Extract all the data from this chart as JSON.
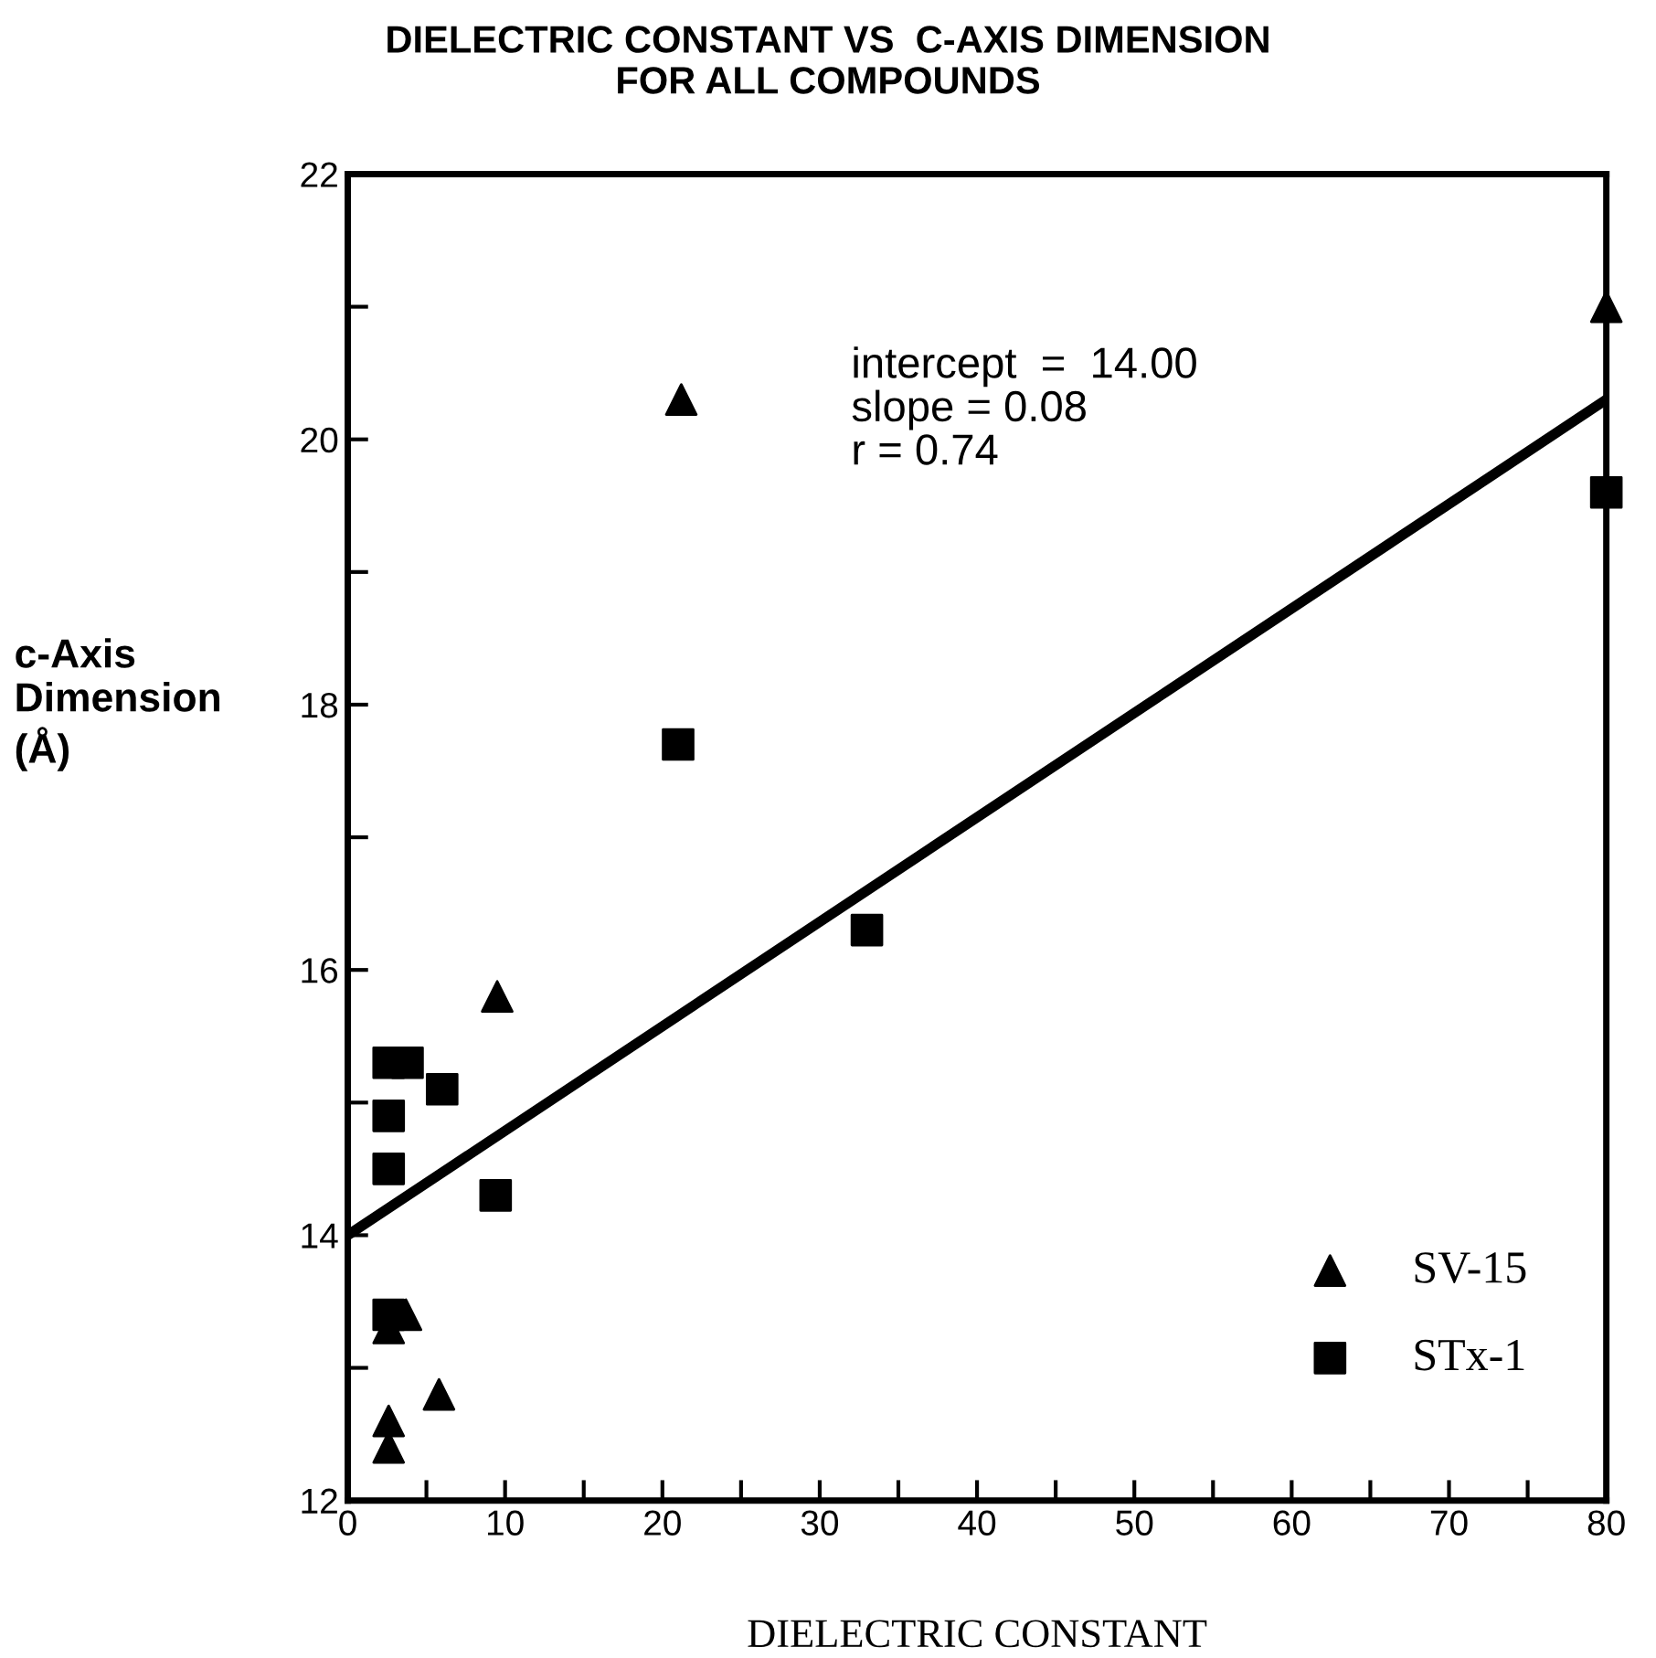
{
  "chart_data": {
    "type": "scatter",
    "title": "DIELECTRIC CONSTANT VS  C-AXIS DIMENSION\nFOR ALL COMPOUNDS",
    "xlabel": "DIELECTRIC CONSTANT",
    "ylabel": "c-Axis\nDimension\n(Å)",
    "annotations": [
      "intercept  =  14.00\nslope = 0.08\nr = 0.74"
    ],
    "series": [
      {
        "name": "SV-15",
        "color": "#000000",
        "marker": "triangle",
        "x": [
          21.2,
          80,
          9.5,
          2.6,
          2.6,
          2.6,
          3.7,
          5.8
        ],
        "values": [
          20.3,
          21.0,
          15.8,
          12.6,
          12.4,
          13.3,
          13.4,
          12.8
        ]
      },
      {
        "name": "STx-1",
        "color": "#000000",
        "marker": "square",
        "x": [
          21.0,
          33.0,
          80,
          2.6,
          3.8,
          6.0,
          2.6,
          2.6,
          9.4,
          2.6
        ],
        "values": [
          17.7,
          16.3,
          19.6,
          15.3,
          15.3,
          15.1,
          14.9,
          14.5,
          14.3,
          13.4
        ]
      },
      {
        "type": "line",
        "color": "#000000",
        "marker": "none",
        "line_style": "solid",
        "x": [
          0,
          80
        ],
        "values": [
          14.0,
          20.3
        ]
      }
    ],
    "xlim": [
      0,
      80
    ],
    "ylim": [
      12,
      22
    ],
    "xticks": [
      0,
      {
        "value": 5,
        "label": null
      },
      10,
      {
        "value": 15,
        "label": null
      },
      20,
      {
        "value": 25,
        "label": null
      },
      30,
      {
        "value": 35,
        "label": null
      },
      40,
      {
        "value": 45,
        "label": null
      },
      50,
      {
        "value": 55,
        "label": null
      },
      60,
      {
        "value": 65,
        "label": null
      },
      70,
      {
        "value": 75,
        "label": null
      },
      80
    ],
    "yticks": [
      12,
      {
        "value": 13,
        "label": null
      },
      14,
      {
        "value": 15,
        "label": null
      },
      16,
      {
        "value": 17,
        "label": null
      },
      18,
      {
        "value": 19,
        "label": null
      },
      20,
      {
        "value": 21,
        "label": null
      },
      22
    ],
    "grid": false,
    "legend": "bottom right"
  }
}
